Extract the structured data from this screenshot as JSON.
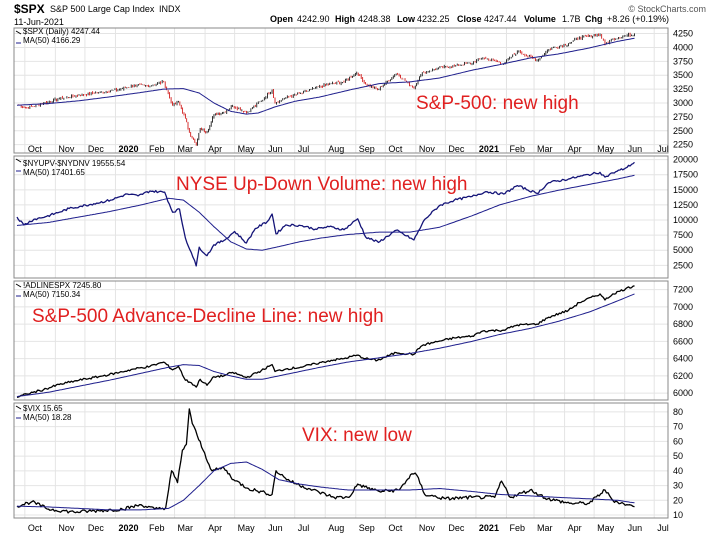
{
  "header": {
    "ticker": "$SPX",
    "name": "S&P 500 Large Cap Index",
    "exchange": "INDX",
    "date": "11-Jun-2021",
    "open_label": "Open",
    "open": "4242.90",
    "high_label": "High",
    "high": "4248.38",
    "low_label": "Low",
    "low": "4232.25",
    "close_label": "Close",
    "close": "4247.44",
    "volume_label": "Volume",
    "volume": "1.7B",
    "chg_label": "Chg",
    "chg": "+8.26 (+0.19%)",
    "source": "© StockCharts.com"
  },
  "colors": {
    "frame": "#888888",
    "grid": "#e4e4e4",
    "ma": "#1e1e8c",
    "spx": "#000000",
    "up_down": "#141478",
    "adline": "#000000",
    "vix": "#000000",
    "annotation": "#e02020",
    "candle_up": "#000000",
    "candle_down": "#cc0000"
  },
  "chart_data": [
    {
      "type": "line",
      "style": "candlestick with moving average",
      "legend": [
        "$SPX (Daily) 4247.44",
        "MA(50) 4166.29"
      ],
      "annotation": "S&P-500: new high",
      "y_ticks": [
        2250,
        2500,
        2750,
        3000,
        3250,
        3500,
        3750,
        4000,
        4250
      ],
      "ylim": [
        2100,
        4350
      ],
      "series": [
        {
          "name": "$SPX (Daily)",
          "x": [
            "2019-09-23",
            "2019-10-03",
            "2019-10-20",
            "2019-11-05",
            "2019-11-25",
            "2019-12-15",
            "2020-01-05",
            "2020-01-20",
            "2020-02-05",
            "2020-02-19",
            "2020-02-28",
            "2020-03-05",
            "2020-03-12",
            "2020-03-16",
            "2020-03-23",
            "2020-03-27",
            "2020-04-03",
            "2020-04-10",
            "2020-04-20",
            "2020-04-29",
            "2020-05-13",
            "2020-05-28",
            "2020-06-08",
            "2020-06-11",
            "2020-06-22",
            "2020-07-07",
            "2020-07-22",
            "2020-08-07",
            "2020-08-20",
            "2020-09-02",
            "2020-09-11",
            "2020-09-23",
            "2020-10-12",
            "2020-10-30",
            "2020-11-06",
            "2020-11-09",
            "2020-11-24",
            "2020-12-10",
            "2020-12-28",
            "2021-01-08",
            "2021-01-29",
            "2021-02-12",
            "2021-03-04",
            "2021-03-16",
            "2021-04-05",
            "2021-04-16",
            "2021-05-07",
            "2021-05-12",
            "2021-05-20",
            "2021-06-02",
            "2021-06-11"
          ],
          "y": [
            2980,
            2910,
            2995,
            3080,
            3140,
            3190,
            3240,
            3320,
            3310,
            3380,
            2960,
            3020,
            2720,
            2470,
            2240,
            2540,
            2480,
            2790,
            2830,
            2950,
            2830,
            3040,
            3230,
            3000,
            3100,
            3170,
            3270,
            3350,
            3380,
            3550,
            3340,
            3240,
            3530,
            3270,
            3510,
            3550,
            3630,
            3670,
            3720,
            3820,
            3710,
            3930,
            3770,
            3970,
            4070,
            4180,
            4230,
            4060,
            4160,
            4210,
            4247
          ]
        },
        {
          "name": "MA(50)",
          "x": [
            "2019-09-23",
            "2019-10-25",
            "2019-11-25",
            "2019-12-26",
            "2020-01-27",
            "2020-02-19",
            "2020-03-10",
            "2020-03-26",
            "2020-04-10",
            "2020-04-27",
            "2020-05-13",
            "2020-05-25",
            "2020-06-11",
            "2020-07-01",
            "2020-07-27",
            "2020-08-27",
            "2020-09-25",
            "2020-10-26",
            "2020-11-25",
            "2020-12-28",
            "2021-01-25",
            "2021-02-25",
            "2021-03-25",
            "2021-04-26",
            "2021-05-25",
            "2021-06-11"
          ],
          "y": [
            2960,
            2990,
            3040,
            3110,
            3190,
            3250,
            3260,
            3180,
            3000,
            2850,
            2800,
            2820,
            2930,
            3030,
            3110,
            3240,
            3350,
            3380,
            3450,
            3590,
            3690,
            3810,
            3880,
            3990,
            4110,
            4166
          ]
        }
      ]
    },
    {
      "type": "line",
      "legend": [
        "$NYUPV-$NYDNV 19555.54",
        "MA(50) 17401.65"
      ],
      "annotation": "NYSE Up-Down Volume: new high",
      "y_ticks": [
        2500,
        5000,
        7500,
        10000,
        12500,
        15000,
        17500,
        20000
      ],
      "ylim": [
        400,
        20600
      ],
      "series": [
        {
          "name": "$NYUPV-$NYDNV",
          "x": [
            "2019-09-23",
            "2019-09-30",
            "2019-10-10",
            "2019-10-23",
            "2019-11-05",
            "2019-11-15",
            "2019-11-27",
            "2019-12-10",
            "2019-12-27",
            "2020-01-13",
            "2020-01-24",
            "2020-02-05",
            "2020-02-20",
            "2020-02-28",
            "2020-03-06",
            "2020-03-12",
            "2020-03-18",
            "2020-03-23",
            "2020-03-26",
            "2020-04-03",
            "2020-04-10",
            "2020-04-20",
            "2020-05-01",
            "2020-05-13",
            "2020-05-22",
            "2020-06-03",
            "2020-06-08",
            "2020-06-12",
            "2020-06-22",
            "2020-07-07",
            "2020-07-22",
            "2020-08-05",
            "2020-08-20",
            "2020-09-03",
            "2020-09-11",
            "2020-09-24",
            "2020-10-12",
            "2020-10-30",
            "2020-11-10",
            "2020-11-25",
            "2020-12-10",
            "2020-12-28",
            "2021-01-11",
            "2021-01-29",
            "2021-02-12",
            "2021-03-04",
            "2021-03-16",
            "2021-04-05",
            "2021-04-16",
            "2021-05-07",
            "2021-05-12",
            "2021-05-20",
            "2021-06-02",
            "2021-06-11"
          ],
          "y": [
            10500,
            9200,
            10100,
            10600,
            11300,
            11900,
            12300,
            12700,
            13300,
            14300,
            14000,
            14800,
            14600,
            11300,
            11800,
            7000,
            4600,
            2400,
            5500,
            4100,
            5900,
            6600,
            8100,
            6200,
            8600,
            9700,
            11000,
            7700,
            9200,
            9100,
            8500,
            8900,
            8400,
            10200,
            7200,
            6300,
            8300,
            6700,
            10100,
            12400,
            13300,
            13900,
            14700,
            14300,
            15700,
            14400,
            16200,
            16800,
            17200,
            17900,
            17100,
            17800,
            18600,
            19556
          ]
        },
        {
          "name": "MA(50)",
          "x": [
            "2019-09-23",
            "2019-10-25",
            "2019-11-25",
            "2019-12-26",
            "2020-01-27",
            "2020-02-24",
            "2020-03-10",
            "2020-03-26",
            "2020-04-10",
            "2020-04-27",
            "2020-05-13",
            "2020-05-29",
            "2020-06-15",
            "2020-07-06",
            "2020-07-27",
            "2020-08-24",
            "2020-09-25",
            "2020-10-26",
            "2020-11-25",
            "2020-12-28",
            "2021-01-25",
            "2021-02-25",
            "2021-03-25",
            "2021-04-26",
            "2021-05-25",
            "2021-06-11"
          ],
          "y": [
            9100,
            9600,
            10500,
            11400,
            12500,
            13600,
            13300,
            11300,
            8900,
            6400,
            5200,
            5000,
            5600,
            6400,
            7000,
            7600,
            8000,
            8000,
            8800,
            10700,
            12500,
            13900,
            14900,
            15900,
            16800,
            17402
          ]
        }
      ]
    },
    {
      "type": "line",
      "legend": [
        "!ADLINESPX 7245.80",
        "MA(50) 7150.34"
      ],
      "annotation": "S&P-500 Advance-Decline Line: new high",
      "y_ticks": [
        6000,
        6200,
        6400,
        6600,
        6800,
        7000,
        7200
      ],
      "ylim": [
        5920,
        7300
      ],
      "series": [
        {
          "name": "!ADLINESPX",
          "x": [
            "2019-09-23",
            "2019-10-03",
            "2019-10-20",
            "2019-11-05",
            "2019-11-25",
            "2019-12-15",
            "2020-01-05",
            "2020-01-20",
            "2020-02-05",
            "2020-02-19",
            "2020-02-28",
            "2020-03-05",
            "2020-03-12",
            "2020-03-18",
            "2020-03-23",
            "2020-03-27",
            "2020-04-03",
            "2020-04-10",
            "2020-04-20",
            "2020-04-29",
            "2020-05-13",
            "2020-05-28",
            "2020-06-08",
            "2020-06-11",
            "2020-06-22",
            "2020-07-07",
            "2020-07-22",
            "2020-08-07",
            "2020-08-20",
            "2020-09-02",
            "2020-09-11",
            "2020-09-23",
            "2020-10-12",
            "2020-10-30",
            "2020-11-06",
            "2020-11-09",
            "2020-11-24",
            "2020-12-10",
            "2020-12-28",
            "2021-01-08",
            "2021-01-29",
            "2021-02-12",
            "2021-03-04",
            "2021-03-16",
            "2021-04-05",
            "2021-04-16",
            "2021-05-07",
            "2021-05-12",
            "2021-05-20",
            "2021-06-02",
            "2021-06-11"
          ],
          "y": [
            5950,
            5990,
            6040,
            6100,
            6150,
            6190,
            6240,
            6280,
            6310,
            6360,
            6270,
            6310,
            6150,
            6120,
            6070,
            6160,
            6090,
            6190,
            6200,
            6240,
            6180,
            6260,
            6330,
            6250,
            6280,
            6300,
            6340,
            6380,
            6400,
            6440,
            6400,
            6380,
            6470,
            6450,
            6540,
            6560,
            6600,
            6640,
            6660,
            6720,
            6730,
            6790,
            6800,
            6880,
            6960,
            7050,
            7150,
            7080,
            7150,
            7210,
            7246
          ]
        },
        {
          "name": "MA(50)",
          "x": [
            "2019-09-23",
            "2019-10-25",
            "2019-11-25",
            "2019-12-26",
            "2020-01-27",
            "2020-02-24",
            "2020-03-10",
            "2020-03-26",
            "2020-04-10",
            "2020-04-27",
            "2020-05-13",
            "2020-05-29",
            "2020-06-15",
            "2020-07-06",
            "2020-07-27",
            "2020-08-24",
            "2020-09-25",
            "2020-10-26",
            "2020-11-25",
            "2020-12-28",
            "2021-01-25",
            "2021-02-25",
            "2021-03-25",
            "2021-04-26",
            "2021-05-25",
            "2021-06-11"
          ],
          "y": [
            5960,
            6010,
            6080,
            6150,
            6230,
            6300,
            6330,
            6320,
            6250,
            6200,
            6160,
            6160,
            6200,
            6250,
            6300,
            6360,
            6410,
            6460,
            6520,
            6600,
            6680,
            6750,
            6830,
            6940,
            7070,
            7150
          ]
        }
      ]
    },
    {
      "type": "line",
      "legend": [
        "$VIX 15.65",
        "MA(50) 18.28"
      ],
      "annotation": "VIX: new low",
      "y_ticks": [
        10,
        20,
        30,
        40,
        50,
        60,
        70,
        80
      ],
      "ylim": [
        8,
        86
      ],
      "series": [
        {
          "name": "$VIX",
          "x": [
            "2019-09-23",
            "2019-10-08",
            "2019-10-25",
            "2019-11-20",
            "2019-12-15",
            "2020-01-08",
            "2020-01-27",
            "2020-02-10",
            "2020-02-21",
            "2020-02-27",
            "2020-03-04",
            "2020-03-09",
            "2020-03-13",
            "2020-03-16",
            "2020-03-19",
            "2020-03-24",
            "2020-03-30",
            "2020-04-08",
            "2020-04-20",
            "2020-04-30",
            "2020-05-15",
            "2020-06-01",
            "2020-06-08",
            "2020-06-12",
            "2020-06-26",
            "2020-07-15",
            "2020-08-10",
            "2020-08-25",
            "2020-09-03",
            "2020-09-10",
            "2020-09-25",
            "2020-10-15",
            "2020-10-28",
            "2020-11-02",
            "2020-11-10",
            "2020-12-01",
            "2020-12-28",
            "2021-01-20",
            "2021-01-27",
            "2021-02-05",
            "2021-02-25",
            "2021-03-15",
            "2021-04-06",
            "2021-04-26",
            "2021-05-12",
            "2021-05-20",
            "2021-06-03",
            "2021-06-11"
          ],
          "y": [
            16,
            19,
            14,
            12,
            13,
            14,
            17,
            14,
            15,
            40,
            32,
            54,
            58,
            82,
            72,
            64,
            54,
            40,
            42,
            34,
            28,
            25,
            24,
            40,
            33,
            28,
            22,
            22,
            31,
            29,
            26,
            27,
            38,
            37,
            24,
            21,
            22,
            22,
            33,
            22,
            27,
            21,
            18,
            18,
            27,
            20,
            17,
            15.65
          ]
        },
        {
          "name": "MA(50)",
          "x": [
            "2019-09-23",
            "2019-10-25",
            "2019-11-25",
            "2019-12-26",
            "2020-01-27",
            "2020-02-24",
            "2020-03-10",
            "2020-03-26",
            "2020-04-10",
            "2020-04-27",
            "2020-05-13",
            "2020-05-29",
            "2020-06-15",
            "2020-07-06",
            "2020-07-27",
            "2020-08-24",
            "2020-09-25",
            "2020-10-26",
            "2020-11-25",
            "2020-12-28",
            "2021-01-25",
            "2021-02-25",
            "2021-03-25",
            "2021-04-26",
            "2021-05-25",
            "2021-06-11"
          ],
          "y": [
            16,
            15.5,
            14.5,
            13.5,
            13.5,
            14.5,
            20,
            30,
            40,
            45,
            46,
            41,
            34,
            31,
            29,
            27,
            27,
            27,
            28,
            26,
            24,
            23,
            22,
            21,
            20,
            18.28
          ]
        }
      ]
    }
  ],
  "x_axis": {
    "ticks": [
      {
        "label": "Oct",
        "date": "2019-10-01",
        "bold": false
      },
      {
        "label": "Nov",
        "date": "2019-11-01",
        "bold": false
      },
      {
        "label": "Dec",
        "date": "2019-12-01",
        "bold": false
      },
      {
        "label": "2020",
        "date": "2020-01-01",
        "bold": true
      },
      {
        "label": "Feb",
        "date": "2020-02-01",
        "bold": false
      },
      {
        "label": "Mar",
        "date": "2020-03-01",
        "bold": false
      },
      {
        "label": "Apr",
        "date": "2020-04-01",
        "bold": false
      },
      {
        "label": "May",
        "date": "2020-05-01",
        "bold": false
      },
      {
        "label": "Jun",
        "date": "2020-06-01",
        "bold": false
      },
      {
        "label": "Jul",
        "date": "2020-07-01",
        "bold": false
      },
      {
        "label": "Aug",
        "date": "2020-08-01",
        "bold": false
      },
      {
        "label": "Sep",
        "date": "2020-09-01",
        "bold": false
      },
      {
        "label": "Oct",
        "date": "2020-10-01",
        "bold": false
      },
      {
        "label": "Nov",
        "date": "2020-11-01",
        "bold": false
      },
      {
        "label": "Dec",
        "date": "2020-12-01",
        "bold": false
      },
      {
        "label": "2021",
        "date": "2021-01-01",
        "bold": true
      },
      {
        "label": "Feb",
        "date": "2021-02-01",
        "bold": false
      },
      {
        "label": "Mar",
        "date": "2021-03-01",
        "bold": false
      },
      {
        "label": "Apr",
        "date": "2021-04-01",
        "bold": false
      },
      {
        "label": "May",
        "date": "2021-05-01",
        "bold": false
      },
      {
        "label": "Jun",
        "date": "2021-06-01",
        "bold": false
      },
      {
        "label": "Jul",
        "date": "2021-07-01",
        "bold": false
      }
    ],
    "range": [
      "2019-09-20",
      "2021-07-15"
    ]
  }
}
